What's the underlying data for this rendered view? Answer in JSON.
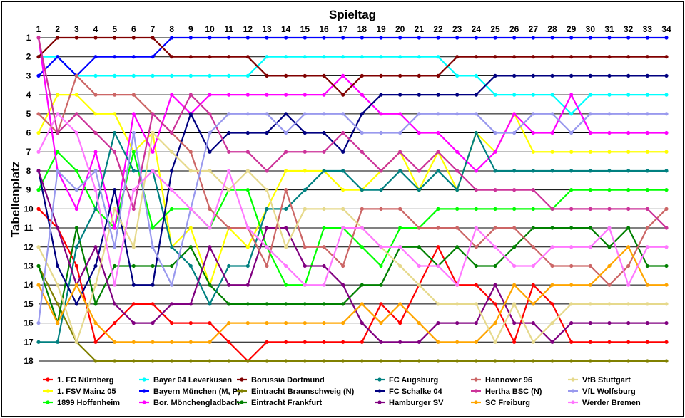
{
  "chart_data": {
    "type": "line",
    "xlabel": "Spieltag",
    "ylabel": "Tabellenplatz",
    "x": [
      1,
      2,
      3,
      4,
      5,
      6,
      7,
      8,
      9,
      10,
      11,
      12,
      13,
      14,
      15,
      16,
      17,
      18,
      19,
      20,
      21,
      22,
      23,
      24,
      25,
      26,
      27,
      28,
      29,
      30,
      31,
      32,
      33,
      34
    ],
    "y_ticks": [
      1,
      2,
      3,
      4,
      5,
      6,
      7,
      8,
      9,
      10,
      11,
      12,
      13,
      14,
      15,
      16,
      17,
      18
    ],
    "xlim": [
      1,
      34
    ],
    "ylim": [
      1,
      18
    ],
    "y_inverted": true,
    "grid": "horizontal",
    "legend_position": "bottom",
    "series": [
      {
        "name": "1. FC Nürnberg",
        "color": "#ff0000",
        "values": [
          10,
          11,
          13,
          17,
          16,
          15,
          15,
          16,
          16,
          16,
          17,
          18,
          17,
          17,
          17,
          17,
          17,
          17,
          15,
          16,
          14,
          12,
          14,
          14,
          15,
          17,
          14,
          15,
          17,
          17,
          17,
          17,
          17,
          17
        ]
      },
      {
        "name": "1. FSV Mainz 05",
        "color": "#ffff00",
        "values": [
          6,
          4,
          4,
          5,
          5,
          7,
          6,
          12,
          11,
          14,
          11,
          12,
          10,
          8,
          8,
          8,
          9,
          9,
          8,
          7,
          9,
          7,
          9,
          6,
          7,
          5,
          7,
          7,
          7,
          7,
          7,
          7,
          7,
          7
        ]
      },
      {
        "name": "1899 Hoffenheim",
        "color": "#00ff00",
        "values": [
          9,
          7,
          8,
          10,
          11,
          7,
          11,
          10,
          10,
          11,
          9,
          9,
          12,
          14,
          14,
          11,
          11,
          12,
          13,
          11,
          11,
          10,
          10,
          10,
          10,
          10,
          10,
          10,
          9,
          9,
          9,
          9,
          9,
          9
        ]
      },
      {
        "name": "Bayer 04 Leverkusen",
        "color": "#00ffff",
        "values": [
          2,
          2,
          3,
          3,
          3,
          3,
          3,
          3,
          3,
          3,
          3,
          3,
          2,
          2,
          2,
          2,
          2,
          2,
          2,
          2,
          2,
          2,
          3,
          3,
          4,
          4,
          4,
          4,
          5,
          4,
          4,
          4,
          4,
          4
        ]
      },
      {
        "name": "Bayern München (M, P)",
        "color": "#0000ff",
        "values": [
          3,
          2,
          3,
          2,
          2,
          2,
          2,
          1,
          1,
          1,
          1,
          1,
          1,
          1,
          1,
          1,
          1,
          1,
          1,
          1,
          1,
          1,
          1,
          1,
          1,
          1,
          1,
          1,
          1,
          1,
          1,
          1,
          1,
          1
        ]
      },
      {
        "name": "Bor. Mönchengladbach",
        "color": "#ff00ff",
        "values": [
          1,
          8,
          10,
          7,
          11,
          5,
          7,
          4,
          5,
          4,
          4,
          4,
          4,
          4,
          4,
          4,
          3,
          4,
          5,
          5,
          6,
          6,
          7,
          8,
          7,
          5,
          6,
          6,
          4,
          6,
          6,
          6,
          6,
          6
        ]
      },
      {
        "name": "Borussia Dortmund",
        "color": "#800000",
        "values": [
          2,
          1,
          1,
          1,
          1,
          1,
          1,
          2,
          2,
          2,
          2,
          2,
          3,
          3,
          3,
          3,
          4,
          3,
          3,
          3,
          3,
          3,
          2,
          2,
          2,
          2,
          2,
          2,
          2,
          2,
          2,
          2,
          2,
          2
        ]
      },
      {
        "name": "Eintracht Braunschweig (N)",
        "color": "#808000",
        "values": [
          13,
          15,
          17,
          18,
          18,
          18,
          18,
          18,
          18,
          18,
          18,
          18,
          18,
          18,
          18,
          18,
          18,
          18,
          18,
          18,
          18,
          18,
          18,
          18,
          18,
          18,
          18,
          18,
          18,
          18,
          18,
          18,
          18,
          18
        ]
      },
      {
        "name": "Eintracht Frankfurt",
        "color": "#008000",
        "values": [
          13,
          16,
          11,
          15,
          13,
          13,
          13,
          13,
          12,
          14,
          15,
          15,
          15,
          15,
          15,
          15,
          15,
          14,
          14,
          12,
          12,
          13,
          12,
          13,
          13,
          12,
          11,
          11,
          11,
          11,
          12,
          11,
          13,
          13
        ]
      },
      {
        "name": "FC Augsburg",
        "color": "#008080",
        "values": [
          17,
          17,
          12,
          10,
          6,
          8,
          8,
          12,
          13,
          15,
          13,
          13,
          10,
          10,
          9,
          8,
          8,
          9,
          9,
          8,
          9,
          8,
          9,
          6,
          8,
          8,
          8,
          8,
          8,
          8,
          8,
          8,
          8,
          8
        ]
      },
      {
        "name": "FC Schalke 04",
        "color": "#000080",
        "values": [
          8,
          13,
          15,
          13,
          9,
          14,
          14,
          8,
          5,
          7,
          6,
          6,
          6,
          5,
          6,
          6,
          7,
          5,
          4,
          4,
          4,
          4,
          4,
          4,
          3,
          3,
          3,
          3,
          3,
          3,
          3,
          3,
          3,
          3
        ]
      },
      {
        "name": "Hamburger SV",
        "color": "#800080",
        "values": [
          8,
          11,
          14,
          12,
          15,
          16,
          16,
          15,
          15,
          12,
          14,
          14,
          11,
          11,
          13,
          13,
          14,
          16,
          17,
          17,
          17,
          16,
          16,
          16,
          14,
          16,
          16,
          17,
          16,
          16,
          16,
          16,
          16,
          16
        ]
      },
      {
        "name": "Hannover 96",
        "color": "#cc6666",
        "values": [
          5,
          6,
          3,
          4,
          4,
          4,
          5,
          6,
          7,
          10,
          11,
          11,
          13,
          9,
          12,
          12,
          13,
          10,
          10,
          10,
          11,
          11,
          11,
          12,
          11,
          11,
          12,
          13,
          13,
          13,
          14,
          13,
          11,
          10
        ]
      },
      {
        "name": "Hertha BSC (N)",
        "color": "#cc3399",
        "values": [
          1,
          6,
          5,
          6,
          7,
          10,
          5,
          6,
          4,
          5,
          7,
          7,
          8,
          7,
          7,
          7,
          6,
          7,
          8,
          7,
          8,
          7,
          8,
          9,
          9,
          9,
          9,
          10,
          10,
          10,
          10,
          10,
          10,
          11
        ]
      },
      {
        "name": "SC Freiburg",
        "color": "#ffa500",
        "values": [
          14,
          16,
          14,
          16,
          17,
          17,
          17,
          17,
          17,
          17,
          16,
          16,
          16,
          16,
          16,
          16,
          16,
          15,
          16,
          15,
          16,
          17,
          17,
          17,
          16,
          14,
          15,
          14,
          14,
          14,
          13,
          12,
          14,
          14
        ]
      },
      {
        "name": "VfB Stuttgart",
        "color": "#e6d98c",
        "values": [
          12,
          14,
          17,
          14,
          10,
          12,
          6,
          7,
          8,
          8,
          9,
          8,
          9,
          12,
          10,
          10,
          10,
          11,
          12,
          13,
          14,
          15,
          15,
          15,
          17,
          15,
          17,
          16,
          15,
          15,
          15,
          15,
          15,
          15
        ]
      },
      {
        "name": "VfL Wolfsburg",
        "color": "#9999ee",
        "values": [
          16,
          8,
          9,
          8,
          12,
          6,
          12,
          14,
          10,
          6,
          5,
          5,
          5,
          6,
          5,
          5,
          5,
          6,
          6,
          6,
          5,
          5,
          5,
          5,
          6,
          6,
          5,
          5,
          6,
          5,
          5,
          5,
          5,
          5
        ]
      },
      {
        "name": "Werder Bremen",
        "color": "#ff77ff",
        "values": [
          7,
          5,
          6,
          9,
          14,
          9,
          8,
          9,
          10,
          11,
          8,
          11,
          12,
          13,
          14,
          14,
          11,
          11,
          12,
          12,
          13,
          13,
          14,
          11,
          12,
          13,
          13,
          12,
          12,
          12,
          11,
          14,
          12,
          12
        ]
      }
    ]
  }
}
